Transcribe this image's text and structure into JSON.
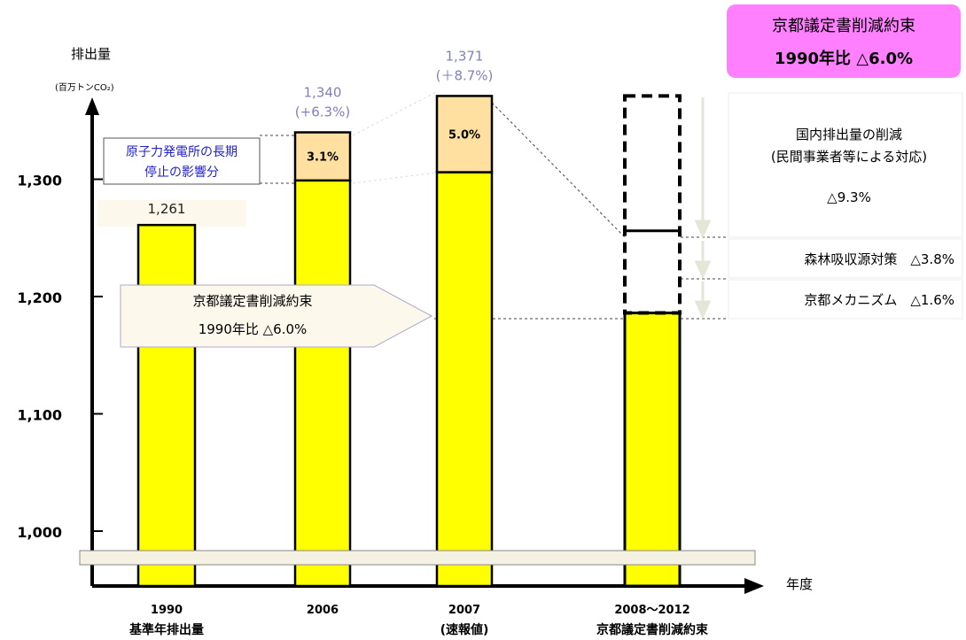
{
  "chart_data": {
    "type": "bar",
    "ylabel": "排出量",
    "yunit": "(百万トンCO₂)",
    "xlabel": "年度",
    "ylim": [
      1000,
      1371
    ],
    "yticks": [
      "1,000",
      "1,100",
      "1,200",
      "1,300"
    ],
    "ytick_values": [
      1000,
      1100,
      1200,
      1300
    ],
    "bars": [
      {
        "category": "1990",
        "sublabel": "基準年排出量",
        "value": 1261,
        "value_label": "1,261",
        "color": "#ffff00"
      },
      {
        "category": "2006",
        "sublabel": "",
        "value": 1340,
        "value_label": "1,340",
        "change_label": "(+6.3%)",
        "base": 1299,
        "nuclear_label": "3.1%",
        "color": "#ffff00",
        "nuclear_color": "#ffe0a0"
      },
      {
        "category": "2007",
        "sublabel": "(速報値)",
        "value": 1371,
        "value_label": "1,371",
        "change_label": "(＋8.7%)",
        "base": 1306,
        "nuclear_label": "5.0%",
        "color": "#ffff00",
        "nuclear_color": "#ffe0a0"
      },
      {
        "category": "2008～2012",
        "sublabel": "京都議定書削減約束",
        "value": 1186,
        "target_top": 1371,
        "forest_top": 1256,
        "color": "#ffff00"
      }
    ]
  },
  "annotations": {
    "nuclear_box": [
      "原子力発電所の長期",
      "停止の影響分"
    ],
    "kyoto_arrow": [
      "京都議定書削減約束",
      "1990年比 △6.0%"
    ],
    "kyoto_box": [
      "京都議定書削減約束",
      "1990年比 △6.0%"
    ],
    "domestic": [
      "国内排出量の削減",
      "(民間事業者等による対応)",
      "△9.3%"
    ],
    "forest": "森林吸収源対策　△3.8%",
    "mechanism": "京都メカニズム　△1.6%"
  },
  "colors": {
    "bar": "#ffff00",
    "nuclear": "#ffe0a0",
    "nuclear_text": "#2222cc",
    "pink": "#ff80ff",
    "label_purple": "#8080c0"
  }
}
